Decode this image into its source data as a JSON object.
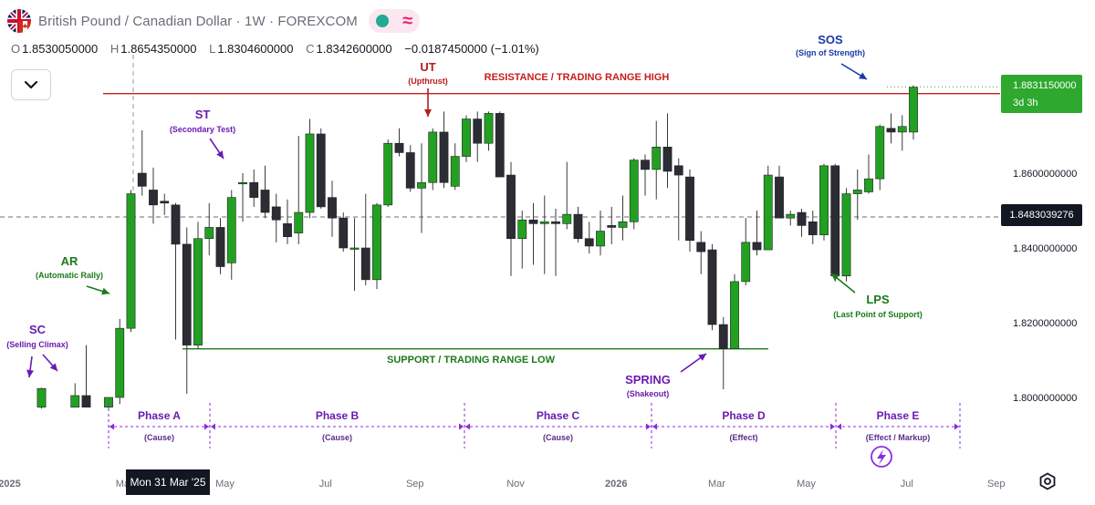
{
  "header": {
    "symbol_title": "British Pound / Canadian Dollar · 1W · FOREXCOM",
    "flag_icon": "uk-canada-flag-icon",
    "status_icons": [
      "market-open-dot-icon",
      "wave-icon"
    ]
  },
  "ohlc": {
    "o_label": "O",
    "o": "1.8530050000",
    "h_label": "H",
    "h": "1.8654350000",
    "l_label": "L",
    "l": "1.8304600000",
    "c_label": "C",
    "c": "1.8342600000",
    "change": "−0.0187450000 (−1.01%)"
  },
  "price_tags": {
    "last_price": "1.8831150000",
    "countdown": "3d 3h",
    "crosshair_price": "1.8483039276",
    "crosshair_date": "Mon 31 Mar '25"
  },
  "colors": {
    "up": "#22a022",
    "down": "#2c2c35",
    "resistance": "#c41e1e",
    "support": "#1a7a1a",
    "annot_purple": "#6a1bb0",
    "annot_green": "#1a7a1a",
    "annot_red": "#b71c1c",
    "annot_blue": "#1a3aa8",
    "phase": "#8a2be2"
  },
  "chart_data": {
    "type": "candlestick",
    "title": "British Pound / Canadian Dollar · 1W · FOREXCOM",
    "ylim": [
      1.79,
      1.9
    ],
    "yticks": [
      {
        "value": 1.8,
        "label": "1.8000000000"
      },
      {
        "value": 1.82,
        "label": "1.8200000000"
      },
      {
        "value": 1.84,
        "label": "1.8400000000"
      },
      {
        "value": 1.86,
        "label": "1.8600000000"
      }
    ],
    "xticks": [
      {
        "i": -6,
        "label": "2025"
      },
      {
        "i": 1,
        "label": "Mar"
      },
      {
        "i": 10,
        "label": "May"
      },
      {
        "i": 19,
        "label": "Jul"
      },
      {
        "i": 27,
        "label": "Sep"
      },
      {
        "i": 36,
        "label": "Nov"
      },
      {
        "i": 45,
        "label": "2026"
      },
      {
        "i": 54,
        "label": "Mar"
      },
      {
        "i": 62,
        "label": "May"
      },
      {
        "i": 71,
        "label": "Jul"
      },
      {
        "i": 79,
        "label": "Sep"
      }
    ],
    "candles": [
      {
        "i": -6,
        "o": 1.7974,
        "h": 1.8026,
        "l": 1.797,
        "c": 1.8024
      },
      {
        "i": -3,
        "o": 1.7974,
        "h": 1.8038,
        "l": 1.7974,
        "c": 1.8005
      },
      {
        "i": -2,
        "o": 1.8005,
        "h": 1.814,
        "l": 1.7974,
        "c": 1.7974
      },
      {
        "i": 0,
        "o": 1.7974,
        "h": 1.8,
        "l": 1.7968,
        "c": 1.8
      },
      {
        "i": 1,
        "o": 1.8,
        "h": 1.821,
        "l": 1.7982,
        "c": 1.8185
      },
      {
        "i": 2,
        "o": 1.8185,
        "h": 1.8555,
        "l": 1.8175,
        "c": 1.8545
      },
      {
        "i": 3,
        "o": 1.86,
        "h": 1.8715,
        "l": 1.854,
        "c": 1.8565
      },
      {
        "i": 4,
        "o": 1.8555,
        "h": 1.8615,
        "l": 1.8465,
        "c": 1.8515
      },
      {
        "i": 5,
        "o": 1.8525,
        "h": 1.8545,
        "l": 1.8488,
        "c": 1.852
      },
      {
        "i": 6,
        "o": 1.8515,
        "h": 1.852,
        "l": 1.8155,
        "c": 1.841
      },
      {
        "i": 7,
        "o": 1.841,
        "h": 1.8455,
        "l": 1.801,
        "c": 1.814
      },
      {
        "i": 8,
        "o": 1.814,
        "h": 1.847,
        "l": 1.813,
        "c": 1.8425
      },
      {
        "i": 9,
        "o": 1.8425,
        "h": 1.852,
        "l": 1.838,
        "c": 1.8455
      },
      {
        "i": 10,
        "o": 1.8455,
        "h": 1.848,
        "l": 1.833,
        "c": 1.835
      },
      {
        "i": 11,
        "o": 1.836,
        "h": 1.8555,
        "l": 1.8315,
        "c": 1.8535
      },
      {
        "i": 12,
        "o": 1.8575,
        "h": 1.86,
        "l": 1.847,
        "c": 1.8575
      },
      {
        "i": 13,
        "o": 1.8575,
        "h": 1.861,
        "l": 1.851,
        "c": 1.8535
      },
      {
        "i": 14,
        "o": 1.8555,
        "h": 1.862,
        "l": 1.848,
        "c": 1.8495
      },
      {
        "i": 15,
        "o": 1.851,
        "h": 1.8545,
        "l": 1.8415,
        "c": 1.8475
      },
      {
        "i": 16,
        "o": 1.8465,
        "h": 1.853,
        "l": 1.841,
        "c": 1.843
      },
      {
        "i": 17,
        "o": 1.844,
        "h": 1.87,
        "l": 1.841,
        "c": 1.8495
      },
      {
        "i": 18,
        "o": 1.8495,
        "h": 1.8745,
        "l": 1.848,
        "c": 1.8705
      },
      {
        "i": 19,
        "o": 1.8705,
        "h": 1.872,
        "l": 1.8505,
        "c": 1.851
      },
      {
        "i": 20,
        "o": 1.8535,
        "h": 1.858,
        "l": 1.843,
        "c": 1.848
      },
      {
        "i": 21,
        "o": 1.848,
        "h": 1.8495,
        "l": 1.839,
        "c": 1.84
      },
      {
        "i": 22,
        "o": 1.84,
        "h": 1.848,
        "l": 1.8285,
        "c": 1.84
      },
      {
        "i": 23,
        "o": 1.84,
        "h": 1.8545,
        "l": 1.83,
        "c": 1.8315
      },
      {
        "i": 24,
        "o": 1.8315,
        "h": 1.852,
        "l": 1.829,
        "c": 1.8515
      },
      {
        "i": 25,
        "o": 1.8515,
        "h": 1.869,
        "l": 1.851,
        "c": 1.868
      },
      {
        "i": 26,
        "o": 1.868,
        "h": 1.872,
        "l": 1.8645,
        "c": 1.8655
      },
      {
        "i": 27,
        "o": 1.8655,
        "h": 1.8675,
        "l": 1.855,
        "c": 1.856
      },
      {
        "i": 28,
        "o": 1.856,
        "h": 1.868,
        "l": 1.844,
        "c": 1.8575
      },
      {
        "i": 29,
        "o": 1.8575,
        "h": 1.872,
        "l": 1.8555,
        "c": 1.871
      },
      {
        "i": 30,
        "o": 1.871,
        "h": 1.8765,
        "l": 1.856,
        "c": 1.8575
      },
      {
        "i": 31,
        "o": 1.8565,
        "h": 1.868,
        "l": 1.8555,
        "c": 1.8645
      },
      {
        "i": 32,
        "o": 1.8645,
        "h": 1.8755,
        "l": 1.863,
        "c": 1.8745
      },
      {
        "i": 33,
        "o": 1.8745,
        "h": 1.8765,
        "l": 1.863,
        "c": 1.868
      },
      {
        "i": 34,
        "o": 1.868,
        "h": 1.8765,
        "l": 1.866,
        "c": 1.876
      },
      {
        "i": 35,
        "o": 1.876,
        "h": 1.8765,
        "l": 1.859,
        "c": 1.859
      },
      {
        "i": 36,
        "o": 1.8595,
        "h": 1.863,
        "l": 1.8325,
        "c": 1.8425
      },
      {
        "i": 37,
        "o": 1.8425,
        "h": 1.85,
        "l": 1.8345,
        "c": 1.8475
      },
      {
        "i": 38,
        "o": 1.8475,
        "h": 1.852,
        "l": 1.8355,
        "c": 1.8465
      },
      {
        "i": 39,
        "o": 1.8465,
        "h": 1.854,
        "l": 1.833,
        "c": 1.847
      },
      {
        "i": 40,
        "o": 1.847,
        "h": 1.8505,
        "l": 1.8325,
        "c": 1.8465
      },
      {
        "i": 41,
        "o": 1.8465,
        "h": 1.863,
        "l": 1.845,
        "c": 1.849
      },
      {
        "i": 42,
        "o": 1.849,
        "h": 1.851,
        "l": 1.8415,
        "c": 1.8425
      },
      {
        "i": 43,
        "o": 1.8425,
        "h": 1.847,
        "l": 1.8385,
        "c": 1.8405
      },
      {
        "i": 44,
        "o": 1.8405,
        "h": 1.85,
        "l": 1.838,
        "c": 1.8445
      },
      {
        "i": 45,
        "o": 1.846,
        "h": 1.851,
        "l": 1.841,
        "c": 1.8455
      },
      {
        "i": 46,
        "o": 1.8455,
        "h": 1.854,
        "l": 1.842,
        "c": 1.847
      },
      {
        "i": 47,
        "o": 1.847,
        "h": 1.864,
        "l": 1.845,
        "c": 1.8635
      },
      {
        "i": 48,
        "o": 1.8635,
        "h": 1.865,
        "l": 1.854,
        "c": 1.861
      },
      {
        "i": 49,
        "o": 1.861,
        "h": 1.874,
        "l": 1.853,
        "c": 1.867
      },
      {
        "i": 50,
        "o": 1.867,
        "h": 1.876,
        "l": 1.856,
        "c": 1.8605
      },
      {
        "i": 51,
        "o": 1.862,
        "h": 1.864,
        "l": 1.842,
        "c": 1.8595
      },
      {
        "i": 52,
        "o": 1.859,
        "h": 1.861,
        "l": 1.839,
        "c": 1.842
      },
      {
        "i": 53,
        "o": 1.8415,
        "h": 1.8445,
        "l": 1.833,
        "c": 1.839
      },
      {
        "i": 54,
        "o": 1.8395,
        "h": 1.841,
        "l": 1.818,
        "c": 1.8195
      },
      {
        "i": 55,
        "o": 1.8195,
        "h": 1.8215,
        "l": 1.8022,
        "c": 1.813
      },
      {
        "i": 56,
        "o": 1.813,
        "h": 1.833,
        "l": 1.813,
        "c": 1.831
      },
      {
        "i": 57,
        "o": 1.831,
        "h": 1.848,
        "l": 1.83,
        "c": 1.8415
      },
      {
        "i": 58,
        "o": 1.8415,
        "h": 1.85,
        "l": 1.838,
        "c": 1.8395
      },
      {
        "i": 59,
        "o": 1.8395,
        "h": 1.862,
        "l": 1.8395,
        "c": 1.8595
      },
      {
        "i": 60,
        "o": 1.859,
        "h": 1.862,
        "l": 1.848,
        "c": 1.848
      },
      {
        "i": 61,
        "o": 1.848,
        "h": 1.85,
        "l": 1.846,
        "c": 1.849
      },
      {
        "i": 62,
        "o": 1.8495,
        "h": 1.8505,
        "l": 1.843,
        "c": 1.846
      },
      {
        "i": 63,
        "o": 1.847,
        "h": 1.85,
        "l": 1.841,
        "c": 1.8435
      },
      {
        "i": 64,
        "o": 1.8435,
        "h": 1.8625,
        "l": 1.842,
        "c": 1.862
      },
      {
        "i": 65,
        "o": 1.862,
        "h": 1.8625,
        "l": 1.831,
        "c": 1.8325
      },
      {
        "i": 66,
        "o": 1.8325,
        "h": 1.856,
        "l": 1.831,
        "c": 1.8545
      },
      {
        "i": 67,
        "o": 1.8545,
        "h": 1.861,
        "l": 1.8475,
        "c": 1.8555
      },
      {
        "i": 68,
        "o": 1.855,
        "h": 1.865,
        "l": 1.8545,
        "c": 1.8585
      },
      {
        "i": 69,
        "o": 1.8585,
        "h": 1.873,
        "l": 1.8555,
        "c": 1.8725
      },
      {
        "i": 70,
        "o": 1.872,
        "h": 1.876,
        "l": 1.868,
        "c": 1.871
      },
      {
        "i": 71,
        "o": 1.871,
        "h": 1.8755,
        "l": 1.866,
        "c": 1.8725
      },
      {
        "i": 72,
        "o": 1.871,
        "h": 1.8835,
        "l": 1.869,
        "c": 1.883
      }
    ],
    "levels": {
      "resistance": {
        "value": 1.8813,
        "label": "RESISTANCE / TRADING RANGE HIGH"
      },
      "support": {
        "value": 1.813,
        "label": "SUPPORT / TRADING RANGE LOW"
      },
      "last": 1.8831,
      "crosshair": 1.8483
    },
    "annotations": [
      {
        "id": "sc",
        "title": "SC",
        "subtitle": "(Selling Climax)",
        "color": "annot_purple"
      },
      {
        "id": "ar",
        "title": "AR",
        "subtitle": "(Automatic Rally)",
        "color": "annot_green"
      },
      {
        "id": "st",
        "title": "ST",
        "subtitle": "(Secondary Test)",
        "color": "annot_purple"
      },
      {
        "id": "ut",
        "title": "UT",
        "subtitle": "(Upthrust)",
        "color": "annot_red"
      },
      {
        "id": "spring",
        "title": "SPRING",
        "subtitle": "(Shakeout)",
        "color": "annot_purple"
      },
      {
        "id": "lps",
        "title": "LPS",
        "subtitle": "(Last Point of Support)",
        "color": "annot_green"
      },
      {
        "id": "sos",
        "title": "SOS",
        "subtitle": "(Sign of Strength)",
        "color": "annot_blue"
      }
    ],
    "phases": [
      {
        "name": "Phase A",
        "sub": "(Cause)"
      },
      {
        "name": "Phase B",
        "sub": "(Cause)"
      },
      {
        "name": "Phase C",
        "sub": "(Cause)"
      },
      {
        "name": "Phase D",
        "sub": "(Effect)"
      },
      {
        "name": "Phase E",
        "sub": "(Effect / Markup)"
      }
    ]
  }
}
